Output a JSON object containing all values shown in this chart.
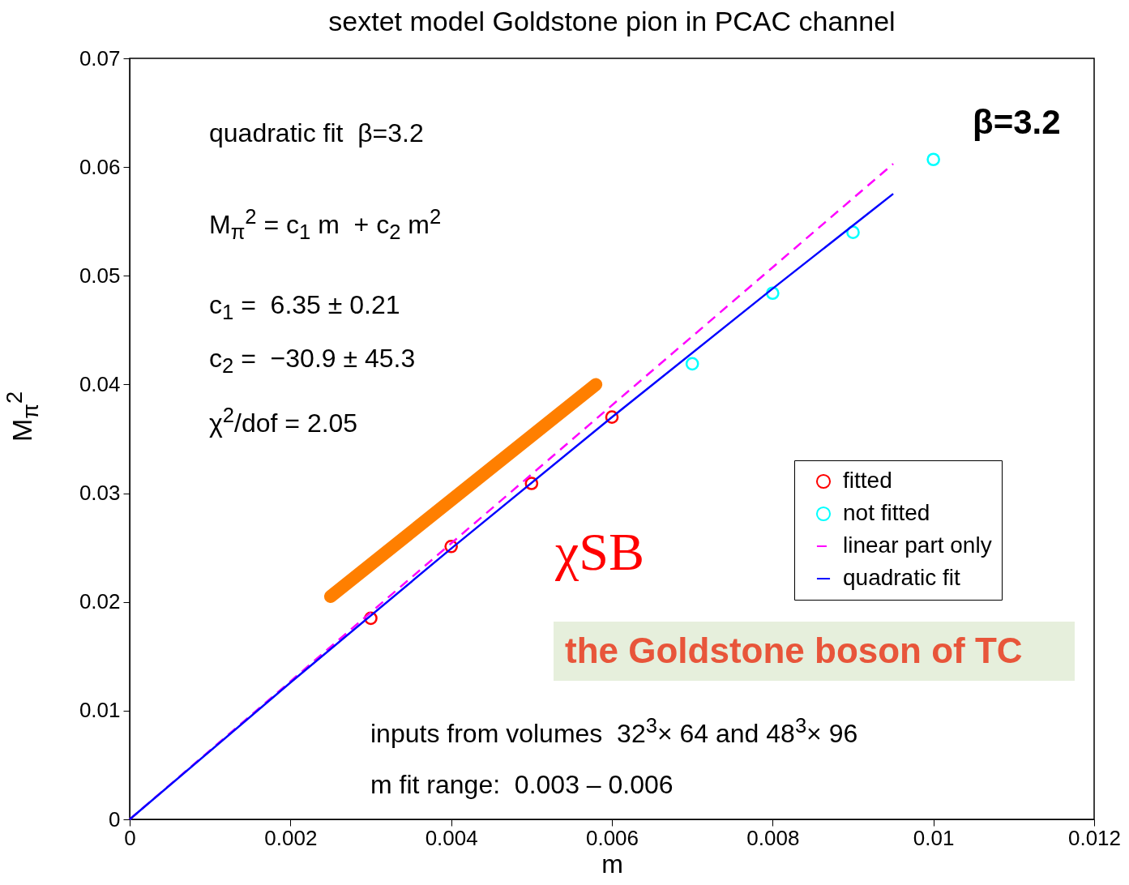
{
  "chart_data": {
    "type": "scatter",
    "title": "sextet model    Goldstone pion in PCAC channel",
    "xlabel": "m",
    "ylabel": "M$_{π}$$^{2}$",
    "xlim": [
      0,
      0.012
    ],
    "xticks": [
      0,
      0.002,
      0.004,
      0.006,
      0.008,
      0.01,
      0.012
    ],
    "ylim": [
      0,
      0.07
    ],
    "yticks": [
      0,
      0.01,
      0.02,
      0.03,
      0.04,
      0.05,
      0.06,
      0.07
    ],
    "grid": false,
    "legend": "bottom right",
    "series": [
      {
        "name": "fitted",
        "marker": "circle",
        "color": "#ff0000",
        "x": [
          0.003,
          0.004,
          0.005,
          0.006
        ],
        "values": [
          0.0185,
          0.0251,
          0.0309,
          0.037
        ]
      },
      {
        "name": "not fitted",
        "marker": "circle",
        "color": "#00ffff",
        "x": [
          0.007,
          0.008,
          0.009,
          0.01
        ],
        "values": [
          0.0419,
          0.0484,
          0.054,
          0.0607
        ]
      },
      {
        "name": "linear part only",
        "type": "line",
        "line_style": "dashed",
        "color": "#ff00ff",
        "x": [
          0,
          0.0095
        ],
        "values": [
          0,
          0.0603
        ]
      },
      {
        "name": "quadratic fit",
        "type": "line",
        "line_style": "solid",
        "color": "#0000ff",
        "x": [
          0,
          0.002,
          0.004,
          0.006,
          0.008,
          0.0095
        ],
        "values": [
          0,
          0.01258,
          0.02491,
          0.03699,
          0.04882,
          0.05754
        ]
      },
      {
        "type": "line",
        "line_style": "solid",
        "color": "#ff7f00",
        "x": [
          0.0025,
          0.0058
        ],
        "values": [
          0.0205,
          0.04
        ]
      }
    ],
    "annotations": [
      "quadratic fit  β=3.2",
      "M$_{π}$$^{2}$ = c$_{1}$ m  + c$_{2}$ m$^{2}$",
      "c$_{1}$ =  6.35 ± 0.21",
      "c$_{2}$ =  −30.9 ± 45.3",
      "χ$^{2}$/dof = 2.05",
      "β=3.2",
      "χSB",
      "the Goldstone boson of TC",
      "inputs from volumes  32$^{3}$× 64 and 48$^{3}$× 96",
      "m fit range:  0.003 – 0.006"
    ]
  }
}
